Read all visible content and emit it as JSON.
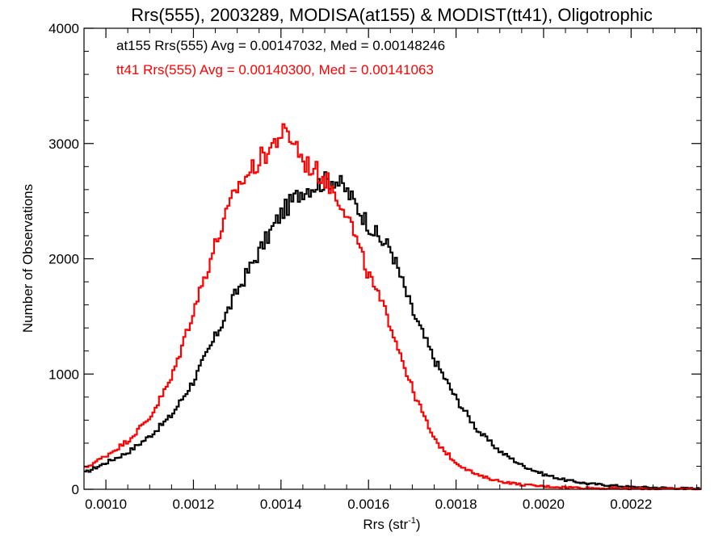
{
  "chart_data": {
    "type": "line",
    "title": "Rrs(555), 2003289, MODISA(at155) & MODIST(tt41), Oligotrophic",
    "xlabel": "Rrs (str",
    "xlabel_sup": "-1",
    "xlabel_end": ")",
    "ylabel": "Number of Observations",
    "xlim": [
      0.00095,
      0.00236
    ],
    "ylim": [
      0,
      4000
    ],
    "xticks": [
      0.001,
      0.0012,
      0.0014,
      0.0016,
      0.0018,
      0.002,
      0.0022
    ],
    "xtick_labels": [
      "0.0010",
      "0.0012",
      "0.0014",
      "0.0016",
      "0.0018",
      "0.0020",
      "0.0022"
    ],
    "yticks": [
      0,
      1000,
      2000,
      3000,
      4000
    ],
    "ytick_labels": [
      "0",
      "1000",
      "2000",
      "3000",
      "4000"
    ],
    "grid": false,
    "legend_placement": "top-left",
    "series": [
      {
        "label": "at155 Rrs(555) Avg = 0.00147032, Med = 0.00148246",
        "color": "#000000",
        "x": [
          0.00095,
          0.001,
          0.00105,
          0.0011,
          0.00115,
          0.0012,
          0.00125,
          0.0013,
          0.00135,
          0.0014,
          0.00145,
          0.0015,
          0.00152,
          0.00155,
          0.0016,
          0.00163,
          0.00165,
          0.0017,
          0.00175,
          0.0018,
          0.00185,
          0.0019,
          0.00195,
          0.002,
          0.00205,
          0.0021,
          0.00215,
          0.0022,
          0.00225,
          0.0023,
          0.00236
        ],
        "y": [
          140,
          230,
          320,
          460,
          640,
          940,
          1320,
          1720,
          2060,
          2390,
          2600,
          2670,
          2700,
          2590,
          2300,
          2150,
          2100,
          1550,
          1130,
          790,
          510,
          330,
          210,
          130,
          80,
          50,
          35,
          20,
          15,
          10,
          5
        ]
      },
      {
        "label": "tt41 Rrs(555) Avg = 0.00140300, Med = 0.00141063",
        "color": "#ff0000",
        "x": [
          0.00095,
          0.001,
          0.00105,
          0.0011,
          0.00115,
          0.0012,
          0.00125,
          0.0013,
          0.00135,
          0.00138,
          0.0014,
          0.00143,
          0.00145,
          0.0015,
          0.00155,
          0.00158,
          0.0016,
          0.00165,
          0.0017,
          0.00175,
          0.0018,
          0.00185,
          0.0019,
          0.00195,
          0.002,
          0.00205,
          0.0021,
          0.00215,
          0.0022,
          0.00225,
          0.0023,
          0.00236
        ],
        "y": [
          180,
          290,
          420,
          620,
          960,
          1550,
          2120,
          2620,
          2850,
          2980,
          3090,
          3030,
          2850,
          2700,
          2420,
          2070,
          1860,
          1440,
          870,
          430,
          230,
          120,
          70,
          40,
          25,
          18,
          12,
          8,
          6,
          5,
          4,
          3
        ]
      }
    ]
  }
}
